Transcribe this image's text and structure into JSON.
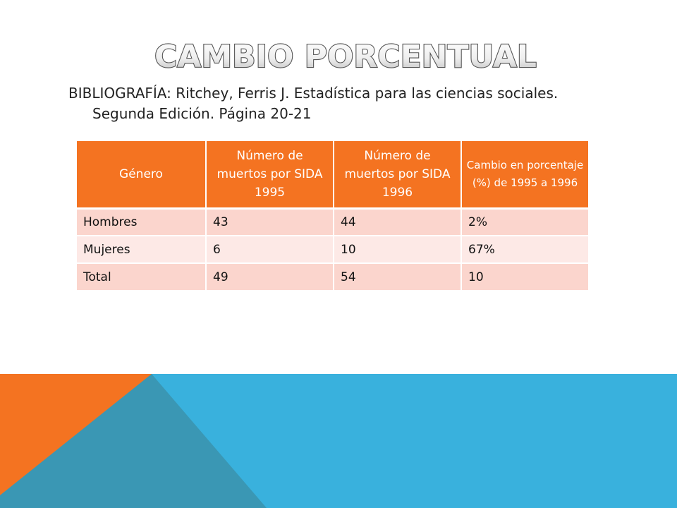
{
  "slide": {
    "title": "CAMBIO PORCENTUAL",
    "bibliography": {
      "label": "BIBLIOGRAFÍA:",
      "line1": "Ritchey, Ferris J. Estadística para las ciencias sociales.",
      "line2": "Segunda Edición. Página 20-21"
    }
  },
  "table": {
    "headers": [
      "Género",
      "Número de muertos por SIDA 1995",
      "Número de muertos por SIDA 1996",
      "Cambio en porcentaje (%) de 1995 a 1996"
    ],
    "rows": [
      [
        "Hombres",
        "43",
        "44",
        "2%"
      ],
      [
        "Mujeres",
        "6",
        "10",
        "67%"
      ],
      [
        "Total",
        "49",
        "54",
        "10"
      ]
    ]
  },
  "colors": {
    "accent_orange": "#f47321",
    "row_dark": "#fbd5cd",
    "row_light": "#fde9e6",
    "band_blue": "#39b1dd",
    "band_dark_blue": "#3a97b4",
    "band_orange": "#f47321"
  }
}
